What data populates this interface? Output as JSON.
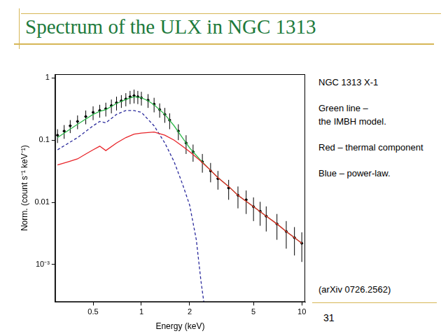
{
  "slide": {
    "title": "Spectrum of the ULX in NGC 1313",
    "notes": [
      "NGC 1313 X-1",
      "Green line –\nthe IMBH model.",
      "Red – thermal component",
      "Blue – power-law."
    ],
    "reference": "(arXiv 0726.2562)",
    "page_number": "31"
  },
  "chart_data": {
    "type": "line",
    "log": true,
    "grid": false,
    "xlabel": "Energy (keV)",
    "ylabel": "Norm. (count s⁻¹ keV⁻¹)",
    "xlim": [
      0.29,
      10.5
    ],
    "xticks": [
      0.5,
      1,
      2,
      5,
      10
    ],
    "ylim": [
      0.00025,
      1.15
    ],
    "yticks": [
      {
        "value": 0.001,
        "label": "10⁻³"
      },
      0.01,
      0.1,
      1
    ],
    "series": [
      {
        "type": "scatter",
        "color": "#000000",
        "marker": "point",
        "x": [
          0.3,
          0.33,
          0.36,
          0.4,
          0.45,
          0.5,
          0.55,
          0.6,
          0.65,
          0.7,
          0.75,
          0.8,
          0.85,
          0.9,
          0.95,
          1.0,
          1.1,
          1.2,
          1.3,
          1.4,
          1.5,
          1.7,
          1.9,
          2.1,
          2.4,
          2.7,
          3.0,
          3.5,
          4.0,
          4.5,
          5.0,
          5.5,
          6.0,
          7.0,
          8.0,
          9.0,
          10.0
        ],
        "values": [
          0.12,
          0.14,
          0.17,
          0.2,
          0.24,
          0.28,
          0.3,
          0.32,
          0.36,
          0.4,
          0.43,
          0.46,
          0.5,
          0.52,
          0.5,
          0.48,
          0.44,
          0.38,
          0.31,
          0.26,
          0.21,
          0.14,
          0.09,
          0.065,
          0.045,
          0.032,
          0.024,
          0.017,
          0.013,
          0.011,
          0.0085,
          0.0072,
          0.006,
          0.0045,
          0.0034,
          0.0027,
          0.0022
        ],
        "yerr": [
          0.03,
          0.035,
          0.04,
          0.05,
          0.06,
          0.07,
          0.07,
          0.08,
          0.09,
          0.1,
          0.1,
          0.11,
          0.12,
          0.13,
          0.12,
          0.12,
          0.11,
          0.1,
          0.08,
          0.07,
          0.06,
          0.04,
          0.03,
          0.02,
          0.015,
          0.011,
          0.008,
          0.006,
          0.005,
          0.0045,
          0.0035,
          0.003,
          0.0026,
          0.002,
          0.0016,
          0.0013,
          0.0011
        ]
      },
      {
        "type": "line",
        "color": "#2a2a9c",
        "marker": "none",
        "line_style": "dashed",
        "x": [
          0.3,
          0.4,
          0.5,
          0.55,
          0.6,
          0.7,
          0.8,
          0.9,
          1.0,
          1.2,
          1.4,
          1.6,
          1.8,
          2.0,
          2.2,
          2.35,
          2.45
        ],
        "values": [
          0.07,
          0.11,
          0.17,
          0.2,
          0.19,
          0.26,
          0.3,
          0.3,
          0.28,
          0.17,
          0.09,
          0.045,
          0.02,
          0.009,
          0.0025,
          0.00055,
          0.00025
        ]
      },
      {
        "type": "line",
        "color": "#2db84a",
        "marker": "none",
        "line_style": "solid",
        "x": [
          0.3,
          0.4,
          0.5,
          0.55,
          0.6,
          0.7,
          0.8,
          0.9,
          1.0,
          1.1,
          1.2,
          1.4,
          1.6,
          1.8,
          2.0,
          2.3,
          2.6,
          3.0,
          3.5,
          4.0,
          5.0,
          6.0,
          7.0,
          8.0,
          9.0,
          10.0
        ],
        "values": [
          0.11,
          0.18,
          0.26,
          0.29,
          0.31,
          0.39,
          0.45,
          0.5,
          0.48,
          0.43,
          0.37,
          0.26,
          0.17,
          0.11,
          0.075,
          0.05,
          0.036,
          0.025,
          0.018,
          0.013,
          0.0085,
          0.006,
          0.0045,
          0.0034,
          0.0027,
          0.0022
        ]
      },
      {
        "type": "line",
        "color": "#e8252a",
        "marker": "none",
        "line_style": "solid",
        "x": [
          0.3,
          0.35,
          0.4,
          0.45,
          0.5,
          0.55,
          0.6,
          0.7,
          0.8,
          0.9,
          1.0,
          1.2,
          1.4,
          1.6,
          1.8,
          2.0,
          2.3,
          2.6,
          3.0,
          3.5,
          4.0,
          5.0,
          6.0,
          7.0,
          8.0,
          9.0,
          10.0
        ],
        "values": [
          0.04,
          0.045,
          0.05,
          0.06,
          0.07,
          0.08,
          0.068,
          0.09,
          0.11,
          0.125,
          0.13,
          0.135,
          0.12,
          0.1,
          0.08,
          0.065,
          0.048,
          0.036,
          0.025,
          0.018,
          0.013,
          0.0085,
          0.006,
          0.0045,
          0.0034,
          0.0027,
          0.0022
        ]
      }
    ]
  }
}
